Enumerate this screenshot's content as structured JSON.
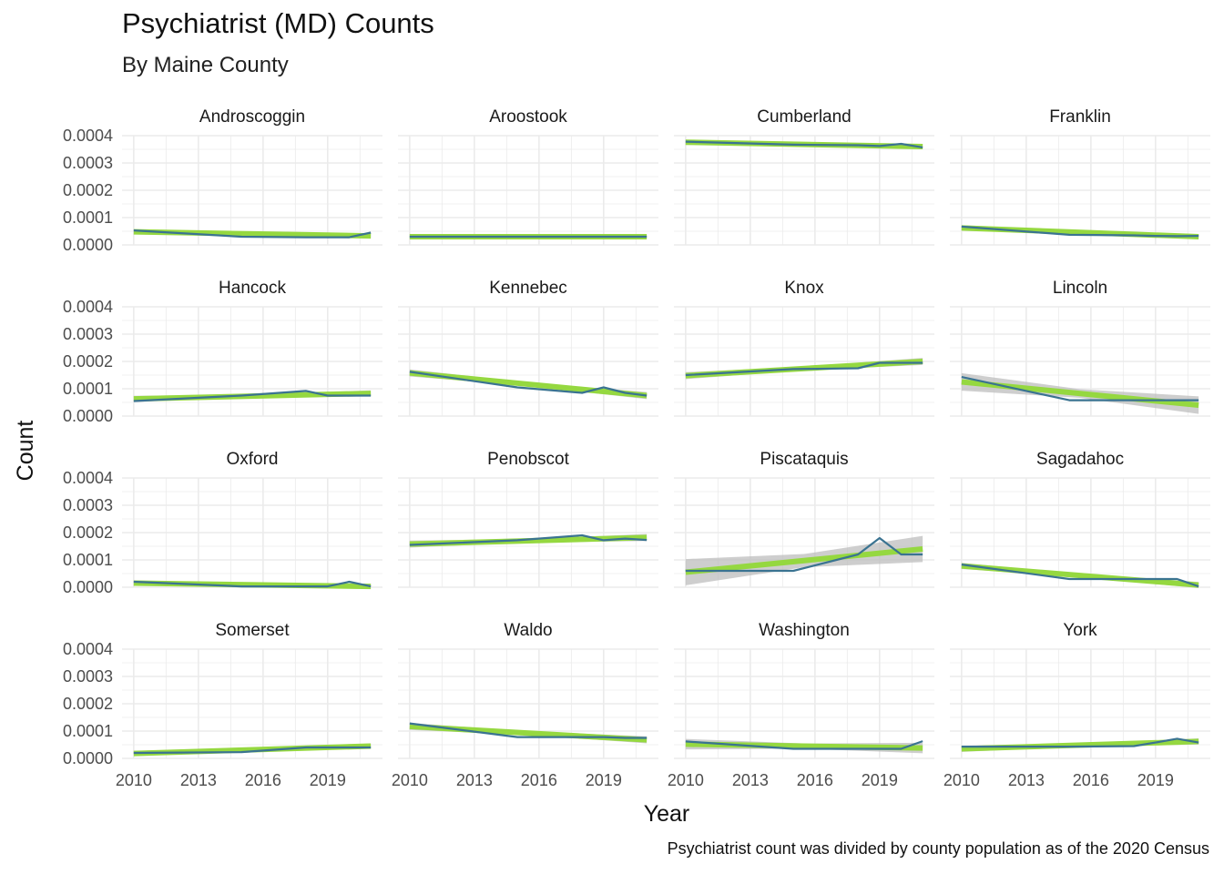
{
  "chart_data": {
    "type": "line",
    "title": "Psychiatrist (MD) Counts",
    "subtitle": "By Maine County",
    "xlabel": "Year",
    "ylabel": "Count",
    "caption": "Psychiatrist count was divided by county population as of the 2020 Census",
    "xlim": [
      2010,
      2021
    ],
    "ylim": [
      0,
      0.0004
    ],
    "xticks": [
      2010,
      2013,
      2016,
      2019
    ],
    "xtick_labels": [
      "2010",
      "2013",
      "2016",
      "2019"
    ],
    "yticks": [
      0,
      0.0001,
      0.0002,
      0.0003,
      0.0004
    ],
    "ytick_labels": [
      "0.0000",
      "0.0001",
      "0.0002",
      "0.0003",
      "0.0004"
    ],
    "x": [
      2010,
      2015,
      2018,
      2019,
      2020,
      2021
    ],
    "grid": true,
    "line_color": "#3a7391",
    "trend_color": "#95d840",
    "band_color": "#bdbdbd",
    "panels": [
      {
        "county": "Androscoggin",
        "values": [
          5.3e-05,
          3e-05,
          2.8e-05,
          2.8e-05,
          2.8e-05,
          4.5e-05
        ],
        "trend": [
          4.8e-05,
          3.3e-05
        ],
        "band": 6e-06
      },
      {
        "county": "Aroostook",
        "values": [
          3e-05,
          3e-05,
          3e-05,
          3e-05,
          3e-05,
          3e-05
        ],
        "trend": [
          3e-05,
          3e-05
        ],
        "band": 3e-06
      },
      {
        "county": "Cumberland",
        "values": [
          0.000378,
          0.000367,
          0.000365,
          0.000362,
          0.00037,
          0.000357
        ],
        "trend": [
          0.000376,
          0.00036
        ],
        "band": 6e-06
      },
      {
        "county": "Franklin",
        "values": [
          6.7e-05,
          3.7e-05,
          3.5e-05,
          3.3e-05,
          3.2e-05,
          3.3e-05
        ],
        "trend": [
          6.2e-05,
          3e-05
        ],
        "band": 6e-06
      },
      {
        "county": "Hancock",
        "values": [
          5.5e-05,
          7.5e-05,
          9.2e-05,
          7.5e-05,
          7.5e-05,
          7.5e-05
        ],
        "trend": [
          6.3e-05,
          8.3e-05
        ],
        "band": 7e-06
      },
      {
        "county": "Kennebec",
        "values": [
          0.000162,
          0.000105,
          8.5e-05,
          0.000105,
          8.5e-05,
          7.5e-05
        ],
        "trend": [
          0.000158,
          7.5e-05
        ],
        "band": 8e-06
      },
      {
        "county": "Knox",
        "values": [
          0.00015,
          0.000172,
          0.000175,
          0.000195,
          0.000195,
          0.000195
        ],
        "trend": [
          0.000148,
          0.0002
        ],
        "band": 8e-06
      },
      {
        "county": "Lincoln",
        "values": [
          0.000143,
          5.8e-05,
          5.8e-05,
          5.8e-05,
          5.8e-05,
          5.8e-05
        ],
        "trend": [
          0.000125,
          4e-05
        ],
        "band": 2e-05
      },
      {
        "county": "Oxford",
        "values": [
          2e-05,
          3e-06,
          3e-06,
          3e-06,
          2e-05,
          3e-06
        ],
        "trend": [
          1.5e-05,
          3e-06
        ],
        "band": 6e-06
      },
      {
        "county": "Penobscot",
        "values": [
          0.000155,
          0.000172,
          0.00019,
          0.000172,
          0.000178,
          0.000173
        ],
        "trend": [
          0.000158,
          0.000182
        ],
        "band": 8e-06
      },
      {
        "county": "Piscataquis",
        "values": [
          6e-05,
          6e-05,
          0.00012,
          0.00018,
          0.00012,
          0.00012
        ],
        "trend": [
          5.5e-05,
          0.00014
        ],
        "band": 3e-05
      },
      {
        "county": "Sagadahoc",
        "values": [
          8.3e-05,
          3e-05,
          3e-05,
          3e-05,
          3e-05,
          3e-06
        ],
        "trend": [
          7.8e-05,
          8e-06
        ],
        "band": 7e-06
      },
      {
        "county": "Somerset",
        "values": [
          2e-05,
          2.3e-05,
          4e-05,
          4e-05,
          4e-05,
          4e-05
        ],
        "trend": [
          1.8e-05,
          4.5e-05
        ],
        "band": 6e-06
      },
      {
        "county": "Waldo",
        "values": [
          0.000128,
          7.8e-05,
          7.8e-05,
          7.8e-05,
          7.5e-05,
          7.5e-05
        ],
        "trend": [
          0.000117,
          6.8e-05
        ],
        "band": 8e-06
      },
      {
        "county": "Washington",
        "values": [
          6.2e-05,
          3.5e-05,
          3.5e-05,
          3.5e-05,
          3.5e-05,
          6.3e-05
        ],
        "trend": [
          5.2e-05,
          3.8e-05
        ],
        "band": 1.2e-05
      },
      {
        "county": "York",
        "values": [
          4.3e-05,
          4.3e-05,
          4.5e-05,
          5.8e-05,
          7.2e-05,
          5.8e-05
        ],
        "trend": [
          3.5e-05,
          6.2e-05
        ],
        "band": 7e-06
      }
    ]
  }
}
